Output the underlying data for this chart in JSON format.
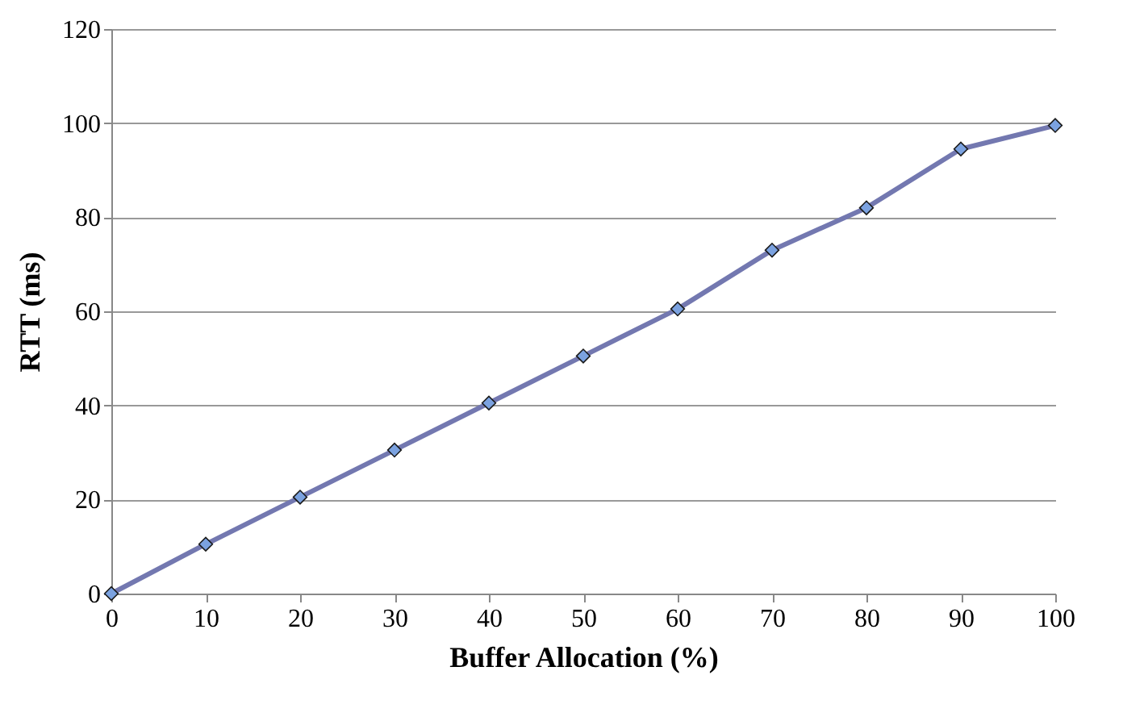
{
  "chart_data": {
    "type": "line",
    "xlabel": "Buffer Allocation (%)",
    "ylabel": "RTT (ms)",
    "x": [
      0,
      10,
      20,
      30,
      40,
      50,
      60,
      70,
      80,
      90,
      100
    ],
    "series": [
      {
        "color": "#7378b0",
        "values": [
          0,
          10.5,
          20.5,
          30.5,
          40.5,
          50.5,
          60.5,
          73,
          82,
          94.5,
          99.5
        ]
      }
    ],
    "xlim": [
      0,
      100
    ],
    "xticks": [
      0,
      10,
      20,
      30,
      40,
      50,
      60,
      70,
      80,
      90,
      100
    ],
    "ylim": [
      0,
      120
    ],
    "yticks": [
      0,
      20,
      40,
      60,
      80,
      100,
      120
    ],
    "grid": "y",
    "marker": "diamond",
    "line_style": "solid"
  }
}
